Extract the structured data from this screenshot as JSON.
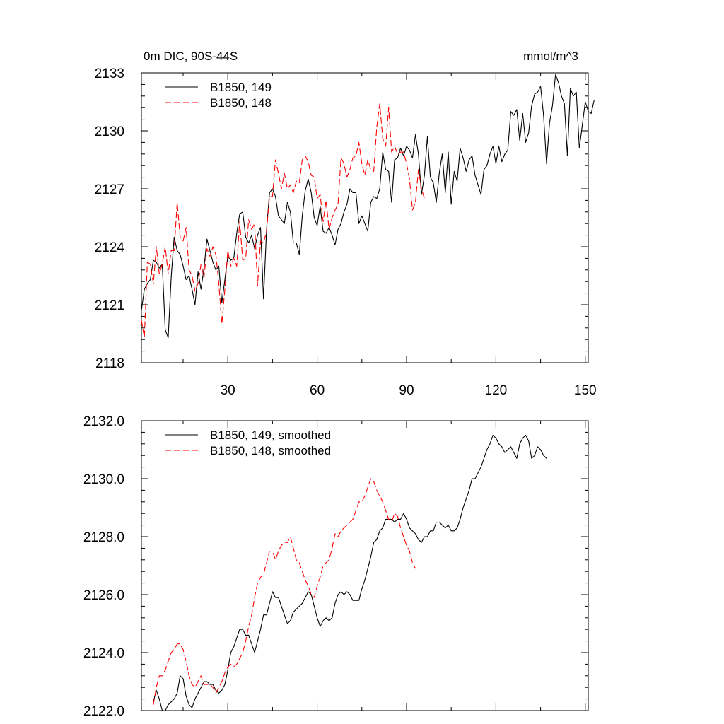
{
  "chart_data": [
    {
      "type": "line",
      "title": "0m DIC, 90S-44S",
      "units": "mmol/m^3",
      "xlabel": "",
      "ylabel": "",
      "xlim": [
        1,
        151
      ],
      "ylim": [
        2118,
        2133
      ],
      "x_ticks": [
        30,
        60,
        90,
        120,
        150
      ],
      "y_ticks": [
        2118,
        2121,
        2124,
        2127,
        2130,
        2133
      ],
      "y_tick_labels": [
        "2118",
        "2121",
        "2124",
        "2127",
        "2130",
        "2133"
      ],
      "legend_placement": "top-left",
      "series": [
        {
          "name": "B1850, 149",
          "color": "#000000",
          "dash": "solid",
          "x_start": 1,
          "values": [
            2120.7,
            2121.8,
            2122.1,
            2122.3,
            2123.3,
            2123.2,
            2122.9,
            2123.1,
            2119.7,
            2119.3,
            2122.4,
            2124.5,
            2123.8,
            2123.6,
            2123.0,
            2122.3,
            2122.5,
            2121.8,
            2121.0,
            2122.7,
            2121.8,
            2122.9,
            2124.4,
            2123.8,
            2123.2,
            2122.8,
            2123.0,
            2121.1,
            2122.3,
            2123.5,
            2123.3,
            2123.4,
            2124.7,
            2125.7,
            2125.8,
            2124.5,
            2124.2,
            2124.6,
            2123.9,
            2124.6,
            2125.0,
            2121.3,
            2124.9,
            2126.8,
            2127.0,
            2126.6,
            2125.6,
            2125.4,
            2125.2,
            2126.3,
            2125.8,
            2124.2,
            2124.2,
            2123.6,
            2125.6,
            2126.9,
            2127.5,
            2126.8,
            2125.5,
            2125.1,
            2126.1,
            2124.8,
            2124.7,
            2125.0,
            2124.6,
            2124.1,
            2124.9,
            2125.2,
            2125.8,
            2126.2,
            2127.0,
            2126.8,
            2126.8,
            2125.2,
            2125.6,
            2125.2,
            2124.8,
            2126.3,
            2126.6,
            2126.5,
            2127.0,
            2128.9,
            2128.0,
            2127.9,
            2126.3,
            2128.5,
            2128.6,
            2129.1,
            2128.7,
            2129.2,
            2129.0,
            2128.6,
            2129.8,
            2128.8,
            2126.7,
            2127.7,
            2129.7,
            2127.6,
            2127.3,
            2126.3,
            2127.8,
            2128.8,
            2126.8,
            2128.9,
            2126.2,
            2127.9,
            2127.4,
            2129.1,
            2128.6,
            2127.9,
            2128.5,
            2128.7,
            2127.7,
            2127.2,
            2126.7,
            2128.0,
            2128.2,
            2128.8,
            2129.2,
            2128.3,
            2129.2,
            2128.4,
            2128.8,
            2129.0,
            2131.0,
            2130.8,
            2131.1,
            2129.5,
            2130.9,
            2129.4,
            2129.9,
            2131.3,
            2131.9,
            2132.0,
            2132.3,
            2130.8,
            2128.3,
            2130.4,
            2131.3,
            2132.9,
            2132.5,
            2131.8,
            2131.4,
            2128.7,
            2132.2,
            2131.8,
            2132.0,
            2129.1,
            2130.3,
            2131.5,
            2131.0,
            2130.9,
            2131.6
          ]
        },
        {
          "name": "B1850, 148",
          "color": "#ff0000",
          "dash": "dashed",
          "x_start": 1,
          "values": [
            2120.2,
            2119.3,
            2123.2,
            2123.1,
            2122.1,
            2124.0,
            2122.6,
            2123.1,
            2124.0,
            2122.6,
            2123.8,
            2123.8,
            2126.3,
            2124.5,
            2124.3,
            2125.0,
            2122.8,
            2122.5,
            2121.7,
            2122.1,
            2123.1,
            2122.4,
            2123.9,
            2123.5,
            2124.0,
            2123.6,
            2122.1,
            2120.0,
            2121.8,
            2123.8,
            2123.0,
            2123.4,
            2123.0,
            2125.3,
            2123.3,
            2123.4,
            2125.4,
            2124.9,
            2125.2,
            2122.0,
            2124.3,
            2124.2,
            2124.8,
            2126.6,
            2126.6,
            2128.5,
            2127.8,
            2127.0,
            2127.8,
            2127.0,
            2127.2,
            2126.8,
            2127.4,
            2127.3,
            2128.5,
            2128.7,
            2128.4,
            2127.7,
            2127.6,
            2126.5,
            2126.7,
            2125.3,
            2126.4,
            2124.9,
            2125.5,
            2125.9,
            2126.2,
            2128.6,
            2128.3,
            2127.6,
            2128.0,
            2128.6,
            2128.7,
            2129.4,
            2128.3,
            2127.7,
            2128.5,
            2128.0,
            2127.9,
            2130.2,
            2131.4,
            2129.6,
            2129.2,
            2131.2,
            2128.9,
            2129.2,
            2128.8,
            2128.9,
            2128.9,
            2128.3,
            2127.5,
            2125.9,
            2126.3,
            2128.0,
            2127.0,
            2126.5
          ]
        }
      ]
    },
    {
      "type": "line",
      "title": "",
      "xlabel": "",
      "ylabel": "",
      "xlim": [
        1,
        151
      ],
      "ylim": [
        2122,
        2132
      ],
      "x_ticks": [
        30,
        60,
        90,
        120,
        150
      ],
      "y_ticks": [
        2122,
        2124,
        2126,
        2128,
        2130,
        2132
      ],
      "y_tick_labels": [
        "2122.0",
        "2124.0",
        "2126.0",
        "2128.0",
        "2130.0",
        "2132.0"
      ],
      "legend_placement": "top-left",
      "series": [
        {
          "name": "B1850, 149, smoothed",
          "color": "#000000",
          "dash": "solid",
          "x_start": 5,
          "values": [
            2122.3,
            2122.7,
            2122.4,
            2122.0,
            2122.0,
            2122.2,
            2122.3,
            2122.4,
            2122.6,
            2123.2,
            2123.1,
            2122.5,
            2122.2,
            2122.1,
            2122.4,
            2122.6,
            2122.8,
            2123.0,
            2123.0,
            2122.9,
            2122.9,
            2122.7,
            2122.6,
            2122.7,
            2122.9,
            2123.4,
            2124.0,
            2124.2,
            2124.5,
            2124.8,
            2124.8,
            2124.6,
            2124.6,
            2124.3,
            2124.0,
            2124.4,
            2124.8,
            2125.3,
            2125.3,
            2125.7,
            2126.1,
            2125.9,
            2125.9,
            2125.6,
            2125.3,
            2125.0,
            2125.1,
            2125.4,
            2125.5,
            2125.6,
            2125.7,
            2125.9,
            2126.1,
            2126.0,
            2125.6,
            2125.2,
            2124.9,
            2125.1,
            2125.2,
            2125.1,
            2125.2,
            2125.7,
            2126.0,
            2126.1,
            2126.0,
            2126.1,
            2126.0,
            2125.8,
            2125.8,
            2125.8,
            2126.2,
            2126.5,
            2126.9,
            2127.3,
            2127.8,
            2127.9,
            2128.2,
            2128.3,
            2128.6,
            2128.6,
            2128.6,
            2128.5,
            2128.6,
            2128.6,
            2128.8,
            2128.6,
            2128.3,
            2128.2,
            2128.1,
            2127.9,
            2127.8,
            2128.0,
            2128.0,
            2128.2,
            2128.2,
            2128.5,
            2128.5,
            2128.4,
            2128.3,
            2128.4,
            2128.2,
            2128.2,
            2128.3,
            2128.6,
            2129.0,
            2129.3,
            2129.6,
            2130.0,
            2130.0,
            2130.2,
            2130.4,
            2130.7,
            2131.0,
            2131.2,
            2131.5,
            2131.4,
            2131.2,
            2131.1,
            2130.9,
            2131.0,
            2131.1,
            2130.9,
            2130.7,
            2131.2,
            2131.4,
            2131.5,
            2131.3,
            2130.7,
            2130.8,
            2131.1,
            2131.0,
            2130.8,
            2130.7
          ]
        },
        {
          "name": "B1850, 148, smoothed",
          "color": "#ff0000",
          "dash": "dashed",
          "x_start": 5,
          "values": [
            2122.2,
            2122.8,
            2123.2,
            2123.2,
            2123.4,
            2123.7,
            2124.0,
            2124.1,
            2124.3,
            2124.3,
            2124.1,
            2123.7,
            2123.2,
            2122.9,
            2122.8,
            2123.0,
            2123.2,
            2122.9,
            2122.9,
            2122.9,
            2122.8,
            2122.6,
            2122.8,
            2123.0,
            2123.3,
            2123.5,
            2123.6,
            2123.5,
            2123.6,
            2123.8,
            2124.0,
            2124.4,
            2124.9,
            2125.3,
            2125.9,
            2126.4,
            2126.6,
            2126.7,
            2127.1,
            2127.5,
            2127.5,
            2127.2,
            2127.5,
            2127.7,
            2127.8,
            2127.8,
            2128.0,
            2127.6,
            2127.2,
            2127.1,
            2126.8,
            2126.5,
            2126.3,
            2126.0,
            2125.9,
            2126.3,
            2126.6,
            2127.0,
            2127.1,
            2127.2,
            2127.6,
            2128.1,
            2128.0,
            2128.2,
            2128.3,
            2128.4,
            2128.5,
            2128.6,
            2128.9,
            2129.2,
            2129.2,
            2129.4,
            2129.7,
            2130.0,
            2129.9,
            2129.6,
            2129.4,
            2129.2,
            2128.9,
            2128.6,
            2128.5,
            2128.8,
            2128.7,
            2128.3,
            2128.0,
            2127.7,
            2127.5,
            2127.1,
            2126.9
          ]
        }
      ]
    }
  ]
}
